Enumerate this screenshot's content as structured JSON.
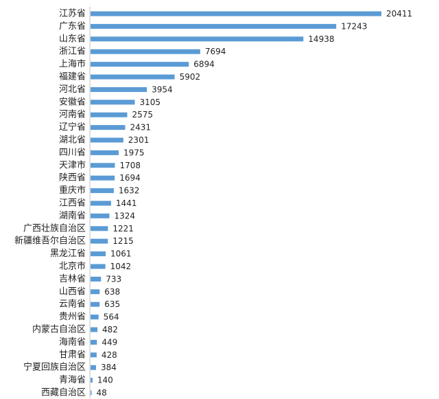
{
  "chart_data": {
    "type": "bar",
    "orientation": "horizontal",
    "categories": [
      "江苏省",
      "广东省",
      "山东省",
      "浙江省",
      "上海市",
      "福建省",
      "河北省",
      "安徽省",
      "河南省",
      "辽宁省",
      "湖北省",
      "四川省",
      "天津市",
      "陕西省",
      "重庆市",
      "江西省",
      "湖南省",
      "广西壮族自治区",
      "新疆维吾尔自治区",
      "黑龙江省",
      "北京市",
      "吉林省",
      "山西省",
      "云南省",
      "贵州省",
      "内蒙古自治区",
      "海南省",
      "甘肃省",
      "宁夏回族自治区",
      "青海省",
      "西藏自治区"
    ],
    "values": [
      20411,
      17243,
      14938,
      7694,
      6894,
      5902,
      3954,
      3105,
      2575,
      2431,
      2301,
      1975,
      1708,
      1694,
      1632,
      1441,
      1324,
      1221,
      1215,
      1061,
      1042,
      733,
      638,
      635,
      564,
      482,
      449,
      428,
      384,
      140,
      48
    ],
    "title": "",
    "xlabel": "",
    "ylabel": "",
    "xlim": [
      0,
      20411
    ],
    "grid": false,
    "legend": "none",
    "bar_color": "#5B9BD5",
    "axis_color": "#BFBFBF",
    "data_labels": true
  }
}
